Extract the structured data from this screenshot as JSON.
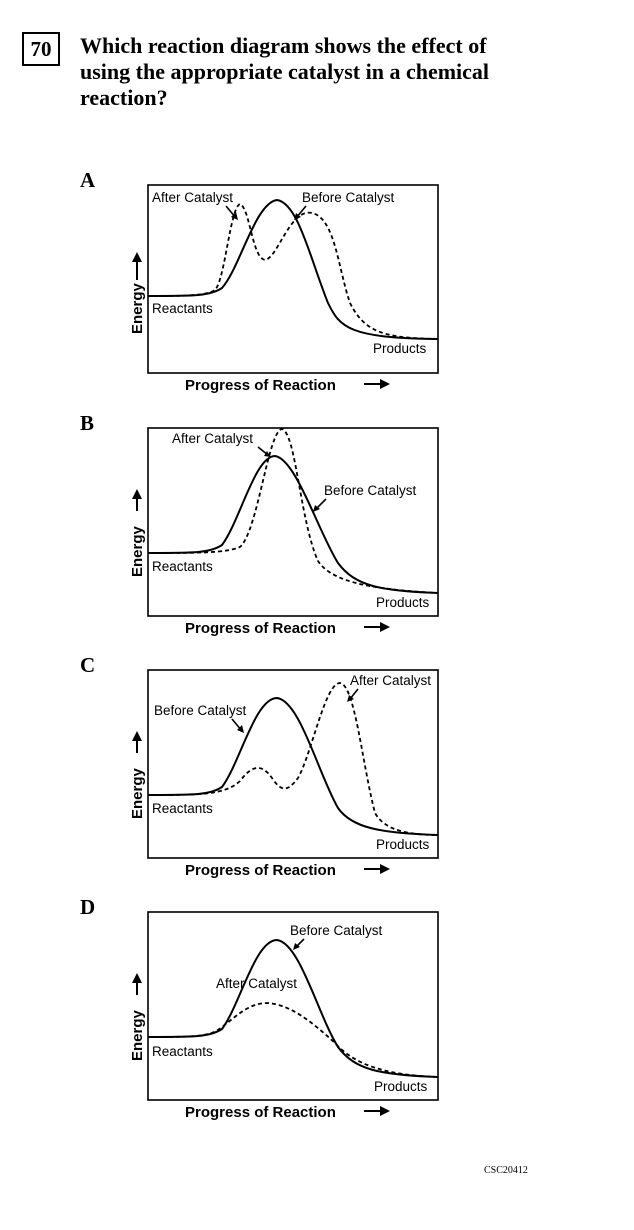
{
  "question": {
    "number": "70",
    "lines": [
      "Which reaction diagram shows the effect of",
      "using the appropriate catalyst in a chemical",
      "reaction?"
    ]
  },
  "choices": [
    {
      "letter": "A",
      "labels": {
        "after": "After Catalyst",
        "before": "Before Catalyst",
        "reactants": "Reactants",
        "products": "Products",
        "xlabel": "Progress of Reaction",
        "ylabel": "Energy"
      }
    },
    {
      "letter": "B",
      "labels": {
        "after": "After Catalyst",
        "before": "Before Catalyst",
        "reactants": "Reactants",
        "products": "Products",
        "xlabel": "Progress of Reaction",
        "ylabel": "Energy"
      }
    },
    {
      "letter": "C",
      "labels": {
        "after": "After Catalyst",
        "before": "Before Catalyst",
        "reactants": "Reactants",
        "products": "Products",
        "xlabel": "Progress of Reaction",
        "ylabel": "Energy"
      }
    },
    {
      "letter": "D",
      "labels": {
        "after": "After Catalyst",
        "before": "Before Catalyst",
        "reactants": "Reactants",
        "products": "Products",
        "xlabel": "Progress of Reaction",
        "ylabel": "Energy"
      }
    }
  ],
  "footer_code": "CSC20412"
}
